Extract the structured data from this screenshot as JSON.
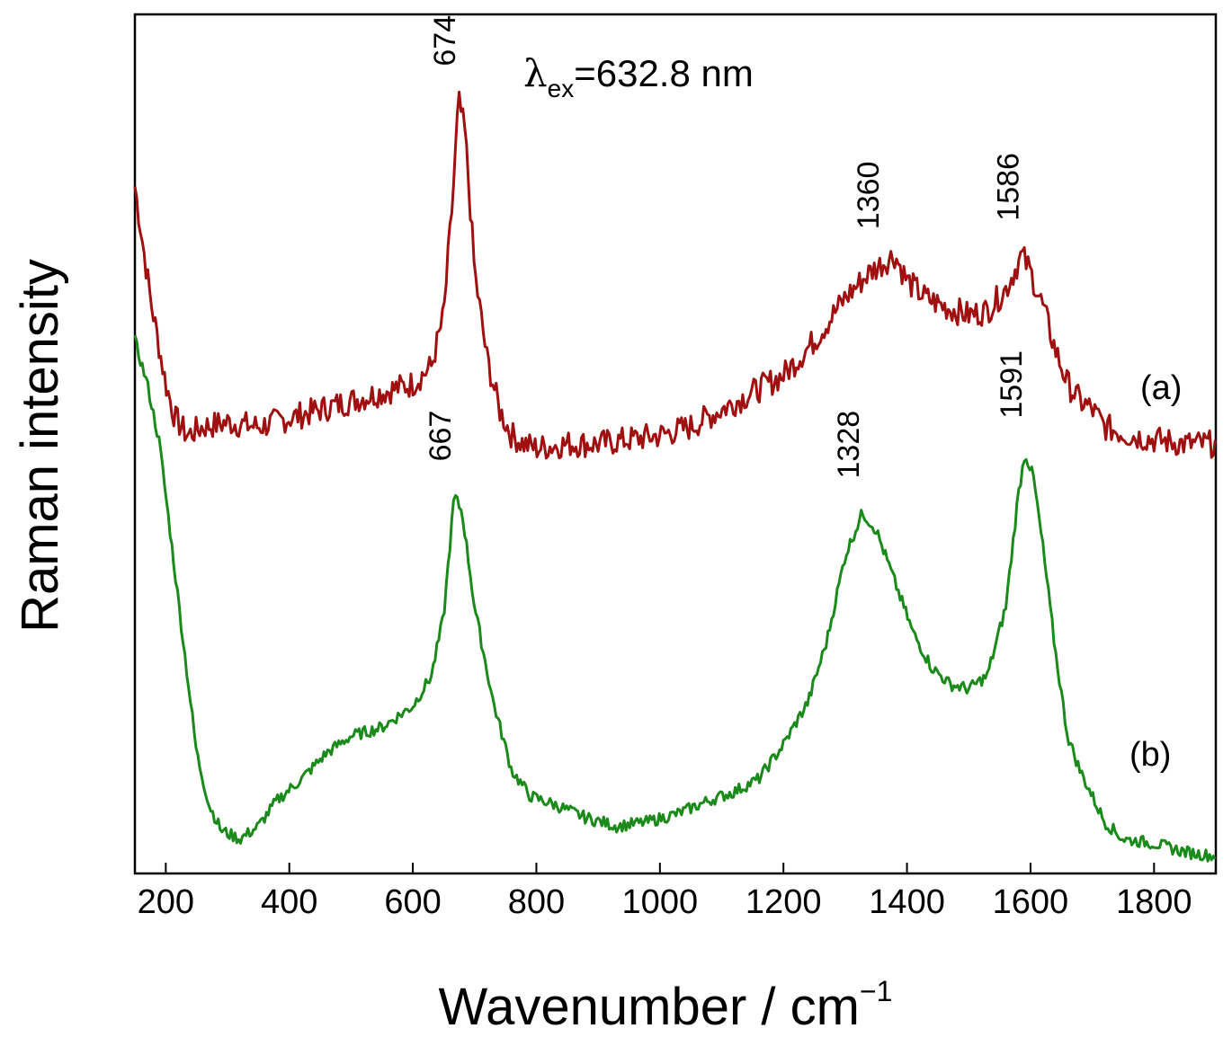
{
  "chart_data": {
    "type": "line",
    "title": "",
    "xlabel": "Wavenumber / cm",
    "xlabel_superscript": "−1",
    "ylabel": "Raman intensity",
    "xlim": [
      150,
      1900
    ],
    "ylim": [
      0,
      100
    ],
    "x_ticks": [
      200,
      400,
      600,
      800,
      1000,
      1200,
      1400,
      1600,
      1800
    ],
    "x_tick_labels": [
      "200",
      "400",
      "600",
      "800",
      "1000",
      "1200",
      "1400",
      "1600",
      "1800"
    ],
    "y_ticks_shown": false,
    "grid": false,
    "annotation": {
      "symbol": "λ",
      "subscript": "ex",
      "text": "=632.8 nm"
    },
    "series": [
      {
        "name": "(a)",
        "color": "#a01010",
        "points": [
          [
            150,
            80
          ],
          [
            175,
            67
          ],
          [
            200,
            57
          ],
          [
            215,
            53
          ],
          [
            235,
            51
          ],
          [
            260,
            52
          ],
          [
            300,
            52.5
          ],
          [
            350,
            52
          ],
          [
            400,
            53
          ],
          [
            450,
            54
          ],
          [
            500,
            55
          ],
          [
            550,
            56
          ],
          [
            600,
            57
          ],
          [
            630,
            59
          ],
          [
            650,
            65
          ],
          [
            665,
            79
          ],
          [
            674,
            90
          ],
          [
            685,
            86
          ],
          [
            700,
            70
          ],
          [
            720,
            60
          ],
          [
            740,
            54
          ],
          [
            760,
            51
          ],
          [
            780,
            50
          ],
          [
            800,
            49.5
          ],
          [
            850,
            50
          ],
          [
            900,
            50
          ],
          [
            950,
            50.5
          ],
          [
            1000,
            51
          ],
          [
            1050,
            52
          ],
          [
            1100,
            54
          ],
          [
            1150,
            56
          ],
          [
            1200,
            58
          ],
          [
            1250,
            62
          ],
          [
            1300,
            67
          ],
          [
            1340,
            70
          ],
          [
            1360,
            71
          ],
          [
            1380,
            72
          ],
          [
            1400,
            69
          ],
          [
            1430,
            67
          ],
          [
            1460,
            66
          ],
          [
            1500,
            65
          ],
          [
            1530,
            65.5
          ],
          [
            1560,
            68
          ],
          [
            1586,
            72
          ],
          [
            1600,
            70
          ],
          [
            1620,
            66
          ],
          [
            1640,
            61
          ],
          [
            1660,
            57
          ],
          [
            1680,
            55
          ],
          [
            1700,
            54
          ],
          [
            1720,
            52
          ],
          [
            1760,
            51
          ],
          [
            1800,
            50.5
          ],
          [
            1850,
            50
          ],
          [
            1900,
            50
          ]
        ],
        "peaks": [
          {
            "x": 674,
            "y": 90,
            "label": "674"
          },
          {
            "x": 1360,
            "y": 71,
            "label": "1360"
          },
          {
            "x": 1586,
            "y": 72,
            "label": "1586"
          }
        ]
      },
      {
        "name": "(b)",
        "color": "#1a8a1a",
        "points": [
          [
            150,
            62
          ],
          [
            170,
            57
          ],
          [
            190,
            50
          ],
          [
            210,
            38
          ],
          [
            230,
            26
          ],
          [
            250,
            14
          ],
          [
            270,
            8
          ],
          [
            290,
            5
          ],
          [
            320,
            4
          ],
          [
            350,
            5.5
          ],
          [
            380,
            8.5
          ],
          [
            420,
            11
          ],
          [
            460,
            14
          ],
          [
            500,
            16
          ],
          [
            550,
            17
          ],
          [
            600,
            19.5
          ],
          [
            630,
            23
          ],
          [
            650,
            30
          ],
          [
            667,
            44
          ],
          [
            680,
            42
          ],
          [
            700,
            31
          ],
          [
            730,
            20
          ],
          [
            760,
            12
          ],
          [
            790,
            9
          ],
          [
            830,
            8
          ],
          [
            880,
            6.5
          ],
          [
            930,
            5.5
          ],
          [
            980,
            6
          ],
          [
            1030,
            7
          ],
          [
            1080,
            8.5
          ],
          [
            1120,
            9.5
          ],
          [
            1160,
            11
          ],
          [
            1200,
            15
          ],
          [
            1240,
            20
          ],
          [
            1270,
            27
          ],
          [
            1300,
            37
          ],
          [
            1328,
            42
          ],
          [
            1350,
            40
          ],
          [
            1380,
            34
          ],
          [
            1410,
            28
          ],
          [
            1440,
            24
          ],
          [
            1470,
            22
          ],
          [
            1500,
            21.5
          ],
          [
            1530,
            23
          ],
          [
            1560,
            31
          ],
          [
            1580,
            44
          ],
          [
            1591,
            49
          ],
          [
            1605,
            46
          ],
          [
            1620,
            38
          ],
          [
            1640,
            26
          ],
          [
            1660,
            16
          ],
          [
            1680,
            12
          ],
          [
            1700,
            9
          ],
          [
            1720,
            6
          ],
          [
            1750,
            4
          ],
          [
            1800,
            3.5
          ],
          [
            1850,
            2.5
          ],
          [
            1900,
            2
          ]
        ],
        "peaks": [
          {
            "x": 667,
            "y": 44,
            "label": "667"
          },
          {
            "x": 1328,
            "y": 42,
            "label": "1328"
          },
          {
            "x": 1591,
            "y": 49,
            "label": "1591"
          }
        ]
      }
    ]
  }
}
